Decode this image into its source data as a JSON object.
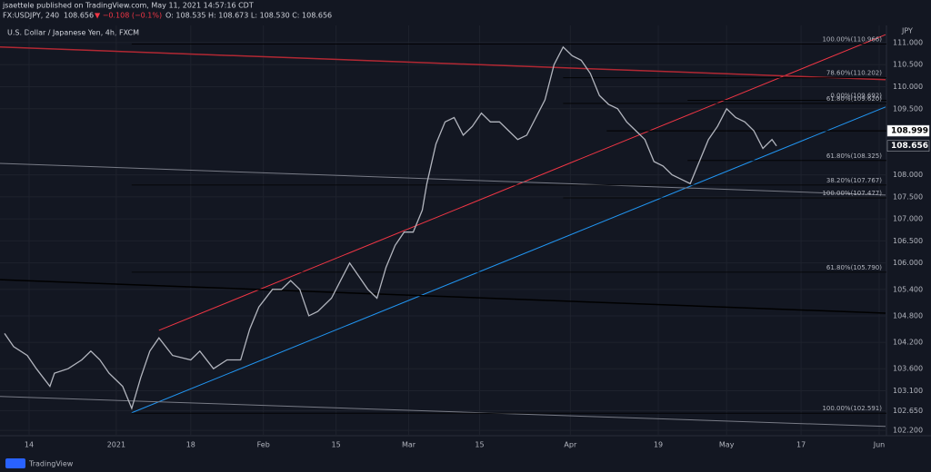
{
  "header": {
    "publisher": "jsaettele published on TradingView.com, May 11, 2021 14:57:16 CDT",
    "symbol": "FX:USDJPY, 240",
    "price": "108.656",
    "change": "▼ −0.108 (−0.1%)",
    "ohlc": "O: 108.535  H: 108.673  L: 108.530  C: 108.656"
  },
  "footer": "TradingView",
  "chart_data": {
    "type": "line",
    "title": "U.S. Dollar / Japanese Yen, 4h, FXCM",
    "currency": "JPY",
    "color": "#b2b5be",
    "grid": true,
    "x": [
      0.625,
      1.875,
      3.75,
      5,
      6.875,
      7.5,
      9.375,
      11.25,
      12.5,
      13.75,
      15,
      16.875,
      18.125,
      19.375,
      20.625,
      21.875,
      23.75,
      26.25,
      27.5,
      29.375,
      31.25,
      33.125,
      34.375,
      35.625,
      37.5,
      38.75,
      40,
      41.25,
      42.5,
      43.75,
      45.625,
      46.875,
      48.125,
      49.375,
      50.625,
      51.875,
      53.125,
      54.375,
      55.625,
      56.875,
      58.125,
      58.75,
      60,
      61.25,
      62.5,
      63.75,
      65,
      66.25,
      67.5,
      68.75,
      70,
      71.25,
      72.5,
      73.75,
      75,
      76.25,
      77.5,
      78.75,
      80,
      81.25,
      82.5,
      83.75,
      85,
      86.25,
      87.5,
      88.75,
      90,
      91.25,
      92.5,
      93.75,
      95,
      96.25,
      97.5,
      98.75,
      100,
      101.25,
      102.5,
      103.75,
      105,
      106.25,
      106.875
    ],
    "values": [
      104.4,
      104.1,
      103.9,
      103.6,
      103.2,
      103.5,
      103.6,
      103.8,
      104.0,
      103.8,
      103.5,
      103.2,
      102.7,
      103.4,
      104.0,
      104.3,
      103.9,
      103.8,
      104.0,
      103.6,
      103.8,
      103.8,
      104.5,
      105.0,
      105.4,
      105.4,
      105.6,
      105.4,
      104.8,
      104.9,
      105.2,
      105.6,
      106.0,
      105.7,
      105.4,
      105.2,
      105.9,
      106.4,
      106.7,
      106.7,
      107.2,
      107.8,
      108.7,
      109.2,
      109.3,
      108.9,
      109.1,
      109.4,
      109.2,
      109.2,
      109.0,
      108.8,
      108.9,
      109.3,
      109.7,
      110.5,
      110.9,
      110.7,
      110.6,
      110.3,
      109.8,
      109.6,
      109.5,
      109.2,
      109.0,
      108.8,
      108.3,
      108.2,
      108.0,
      107.9,
      107.8,
      108.3,
      108.8,
      109.1,
      109.5,
      109.3,
      109.2,
      109.0,
      108.6,
      108.8,
      108.656
    ],
    "xlim": [
      0,
      122
    ],
    "xticks": [
      {
        "value": 4,
        "label": "14"
      },
      {
        "value": 16,
        "label": "2021"
      },
      {
        "value": 26.25,
        "label": "18"
      },
      {
        "value": 36.25,
        "label": "Feb"
      },
      {
        "value": 46.25,
        "label": "15"
      },
      {
        "value": 56.25,
        "label": "Mar"
      },
      {
        "value": 66,
        "label": "15"
      },
      {
        "value": 78.5,
        "label": "Apr"
      },
      {
        "value": 90.6,
        "label": "19"
      },
      {
        "value": 100,
        "label": "May"
      },
      {
        "value": 110.25,
        "label": "17"
      },
      {
        "value": 121,
        "label": "Jun"
      }
    ],
    "ylim": [
      102.08,
      111.39
    ],
    "yticks": [
      {
        "value": 102.2,
        "label": "102.200"
      },
      {
        "value": 102.65,
        "label": "102.650"
      },
      {
        "value": 103.1,
        "label": "103.100"
      },
      {
        "value": 103.6,
        "label": "103.600"
      },
      {
        "value": 104.2,
        "label": "104.200"
      },
      {
        "value": 104.8,
        "label": "104.800"
      },
      {
        "value": 105.4,
        "label": "105.400"
      },
      {
        "value": 106,
        "label": "106.000"
      },
      {
        "value": 106.5,
        "label": "106.500"
      },
      {
        "value": 107,
        "label": "107.000"
      },
      {
        "value": 107.5,
        "label": "107.500"
      },
      {
        "value": 108,
        "label": "108.000"
      },
      {
        "value": 109.5,
        "label": "109.500"
      },
      {
        "value": 110,
        "label": "110.000"
      },
      {
        "value": 110.5,
        "label": "110.500"
      },
      {
        "value": 111,
        "label": "111.000"
      }
    ],
    "levels": [
      {
        "label": "100.00%(110.966)",
        "value": 110.966,
        "start": 18.125
      },
      {
        "label": "78.60%(110.202)",
        "value": 110.202,
        "start": 77.5
      },
      {
        "label": "0.00%(109.692)",
        "value": 109.692,
        "start": 94.625
      },
      {
        "label": "61.80%(109.620)",
        "value": 109.62,
        "start": 77.5
      },
      {
        "label": "61.80%(108.325)",
        "value": 108.325,
        "start": 94.625
      },
      {
        "label": "38.20%(107.767)",
        "value": 107.767,
        "start": 18.125
      },
      {
        "label": "100.00%(107.477)",
        "value": 107.477,
        "start": 77.5
      },
      {
        "label": "61.80%(105.790)",
        "value": 105.79,
        "start": 18.125
      },
      {
        "label": "100.00%(102.591)",
        "value": 102.591,
        "start": 18.125
      }
    ],
    "hlines": [
      {
        "value": 108.999,
        "start": 83.5
      }
    ],
    "price_labels": [
      108.999,
      108.656
    ],
    "trendlines": [
      {
        "x": [
          21.875,
          121.875
        ],
        "y": [
          104.47,
          111.18
        ],
        "color": "#f23645"
      },
      {
        "x": [
          18.125,
          121.875
        ],
        "y": [
          102.6,
          109.54
        ],
        "color": "#2196f3"
      },
      {
        "x": [
          0,
          121.875
        ],
        "y": [
          110.9,
          110.16
        ],
        "color": "#b22833"
      },
      {
        "x": [
          0,
          121.875
        ],
        "y": [
          105.62,
          104.86
        ],
        "color": "#000000"
      },
      {
        "x": [
          0,
          121.875
        ],
        "y": [
          108.26,
          107.54
        ],
        "color": "#787b86"
      },
      {
        "x": [
          0,
          121.875
        ],
        "y": [
          102.97,
          102.29
        ],
        "color": "#787b86"
      }
    ]
  }
}
